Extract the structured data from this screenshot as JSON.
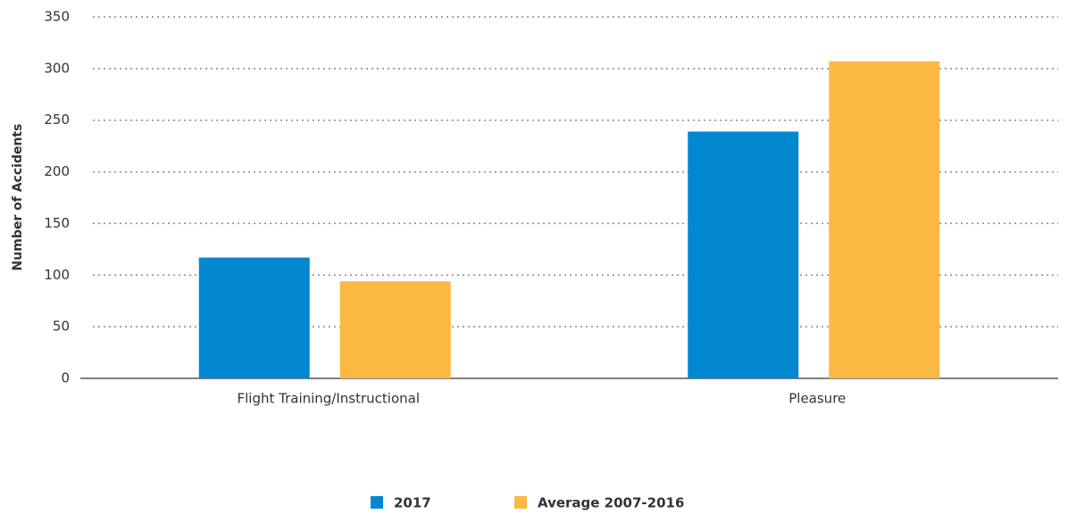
{
  "chart_data": {
    "type": "bar",
    "y_label": "Number of Accidents",
    "categories": [
      "Flight Training/Instructional",
      "Pleasure"
    ],
    "series": [
      {
        "name": "2017",
        "color": "#0288d1",
        "values": [
          117,
          239
        ]
      },
      {
        "name": "Average 2007-2016",
        "color": "#fbb843",
        "values": [
          94,
          307
        ]
      }
    ],
    "ylim": [
      0,
      350
    ],
    "yticks": [
      0,
      50,
      100,
      150,
      200,
      250,
      300,
      350
    ],
    "grid": true,
    "legend": "bottom"
  }
}
